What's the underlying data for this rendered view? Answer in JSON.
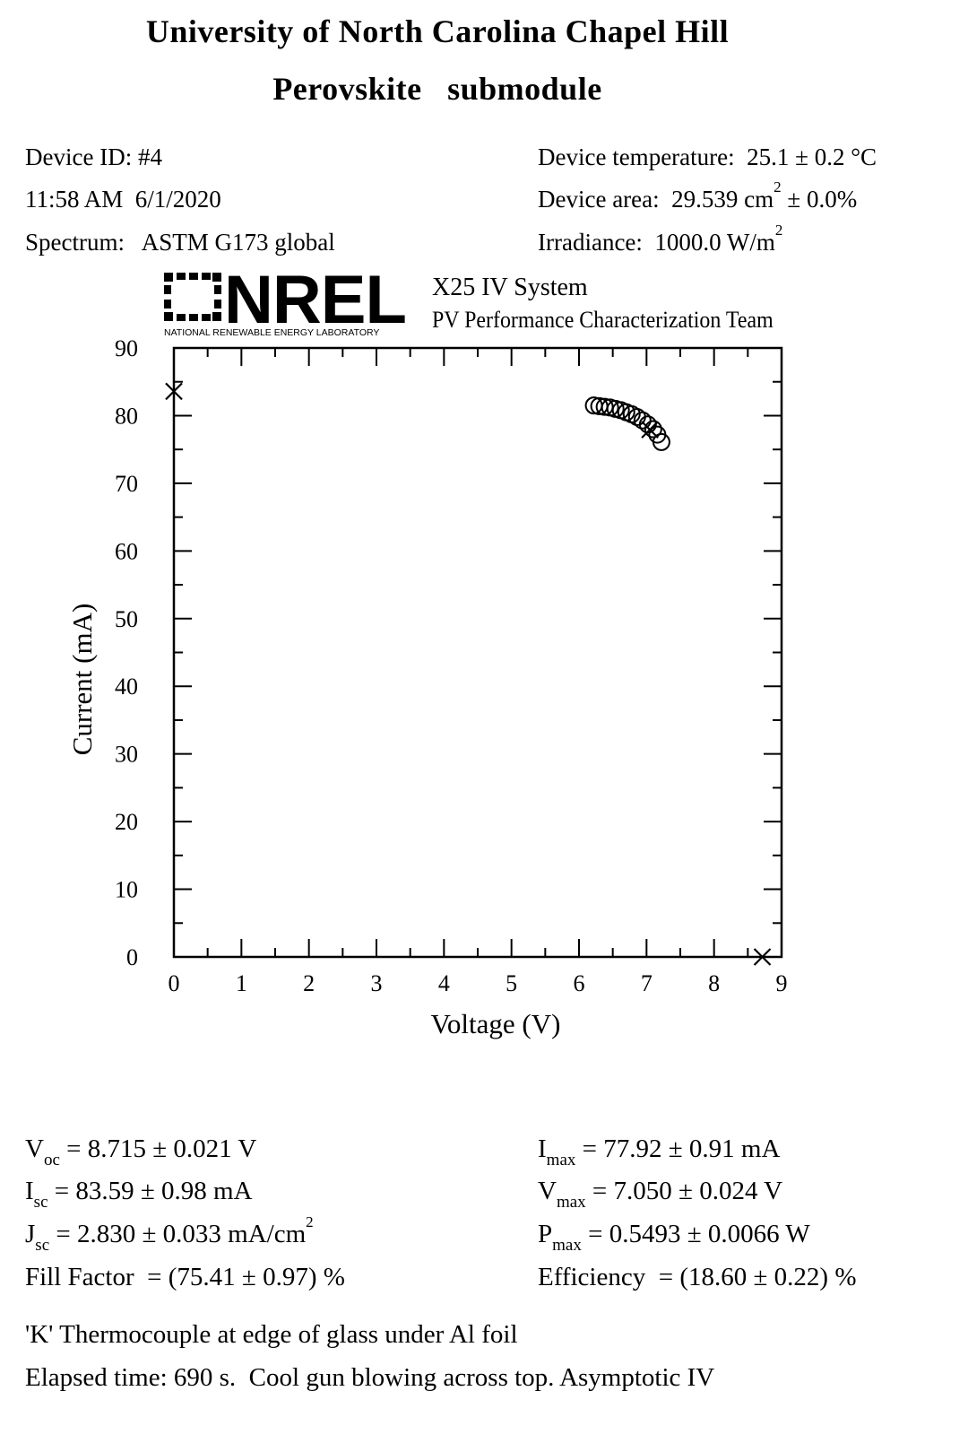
{
  "header": {
    "title_line1": "University of North Carolina Chapel Hill",
    "title_line2": "Perovskite   submodule"
  },
  "meta": {
    "device_id": "Device ID: #4",
    "timestamp": "11:58 AM  6/1/2020",
    "spectrum": "Spectrum:   ASTM G173 global",
    "temperature": "Device temperature:  25.1 ± 0.2 °C",
    "area_prefix": "Device area:  29.539 cm",
    "area_sup": "2",
    "area_suffix": " ± 0.0%",
    "irradiance_prefix": "Irradiance:  1000.0 W/m",
    "irradiance_sup": "2"
  },
  "logo": {
    "word": "NREL",
    "subtitle": "NATIONAL RENEWABLE ENERGY LABORATORY",
    "system_line1": "X25 IV System",
    "system_line2": "PV Performance Characterization Team"
  },
  "chart_data": {
    "type": "scatter",
    "xlabel": "Voltage (V)",
    "ylabel": "Current (mA)",
    "xlim": [
      0,
      9
    ],
    "ylim": [
      0,
      90
    ],
    "xticks": [
      "0",
      "1",
      "2",
      "3",
      "4",
      "5",
      "6",
      "7",
      "8",
      "9"
    ],
    "yticks": [
      "0",
      "10",
      "20",
      "30",
      "40",
      "50",
      "60",
      "70",
      "80",
      "90"
    ],
    "series": [
      {
        "marker": "circle",
        "x": [
          6.22,
          6.3,
          6.38,
          6.46,
          6.54,
          6.62,
          6.7,
          6.78,
          6.86,
          6.94,
          7.02,
          7.1,
          7.16,
          7.22
        ],
        "y": [
          81.5,
          81.4,
          81.3,
          81.2,
          81.0,
          80.8,
          80.5,
          80.2,
          79.8,
          79.3,
          78.7,
          78.0,
          77.2,
          76.1
        ]
      },
      {
        "marker": "x",
        "x": [
          0.0,
          7.05,
          8.715
        ],
        "y": [
          83.59,
          77.92,
          0.0
        ]
      }
    ]
  },
  "results": {
    "voc_sym": "V",
    "voc_sub": "oc",
    "voc_val": " = 8.715 ± 0.021 V",
    "isc_sym": "I",
    "isc_sub": "sc",
    "isc_val": " = 83.59 ± 0.98 mA",
    "jsc_sym": "J",
    "jsc_sub": "sc",
    "jsc_val": " = 2.830 ± 0.033 mA/cm",
    "jsc_sup": "2",
    "ff": "Fill Factor  = (75.41 ± 0.97) %",
    "imax_sym": "I",
    "imax_sub": "max",
    "imax_val": " = 77.92 ± 0.91 mA",
    "vmax_sym": "V",
    "vmax_sub": "max",
    "vmax_val": " = 7.050 ± 0.024 V",
    "pmax_sym": "P",
    "pmax_sub": "max",
    "pmax_val": " = 0.5493 ± 0.0066 W",
    "eff": "Efficiency  = (18.60 ± 0.22) %"
  },
  "notes": {
    "line1": "'K' Thermocouple at edge of glass under Al foil",
    "line2": "Elapsed time: 690 s.  Cool gun blowing across top. Asymptotic IV"
  }
}
